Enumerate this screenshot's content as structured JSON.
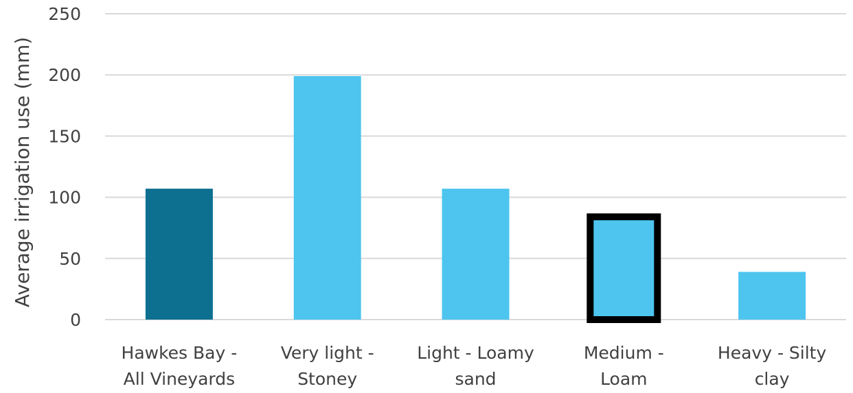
{
  "chart_data": {
    "type": "bar",
    "categories": [
      [
        "Hawkes Bay -",
        "All Vineyards"
      ],
      [
        "Very light -",
        "Stoney"
      ],
      [
        "Light - Loamy",
        "sand"
      ],
      [
        "Medium -",
        "Loam"
      ],
      [
        "Heavy - Silty",
        "clay"
      ]
    ],
    "values": [
      107,
      199,
      107,
      84,
      39
    ],
    "ylabel": "Average irrigation use (mm)",
    "ylim": [
      0,
      250
    ],
    "yticks": [
      0,
      50,
      100,
      150,
      200,
      250
    ],
    "grid": true,
    "legend": "none",
    "colors": {
      "bars": [
        "#0e7090",
        "#4dc5ee",
        "#4dc5ee",
        "#4dc5ee",
        "#4dc5ee"
      ],
      "highlight_outline": "#000000",
      "grid": "#d9d9d9",
      "text": "#404040"
    },
    "highlighted_index": 3
  }
}
